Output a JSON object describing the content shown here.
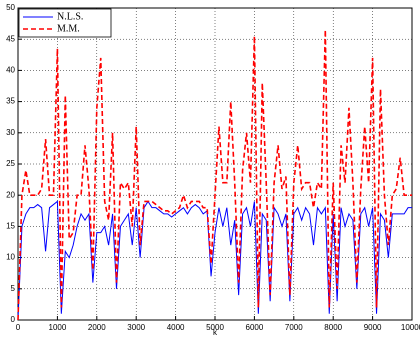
{
  "chart_data": {
    "type": "line",
    "xlabel": "k",
    "x": [
      0,
      100,
      200,
      300,
      400,
      500,
      600,
      700,
      800,
      900,
      1000,
      1100,
      1200,
      1300,
      1400,
      1500,
      1600,
      1700,
      1800,
      1900,
      2000,
      2100,
      2200,
      2300,
      2400,
      2500,
      2600,
      2700,
      2800,
      2900,
      3000,
      3100,
      3200,
      3300,
      3400,
      3500,
      3600,
      3700,
      3800,
      3900,
      4000,
      4100,
      4200,
      4300,
      4400,
      4500,
      4600,
      4700,
      4800,
      4900,
      5000,
      5100,
      5200,
      5300,
      5400,
      5500,
      5600,
      5700,
      5800,
      5900,
      6000,
      6100,
      6200,
      6300,
      6400,
      6500,
      6600,
      6700,
      6800,
      6900,
      7000,
      7100,
      7200,
      7300,
      7400,
      7500,
      7600,
      7700,
      7800,
      7900,
      8000,
      8100,
      8200,
      8300,
      8400,
      8500,
      8600,
      8700,
      8800,
      8900,
      9000,
      9100,
      9200,
      9300,
      9400,
      9500,
      9600,
      9700,
      9800,
      9900,
      10000
    ],
    "series": [
      {
        "name": "N.L.S.",
        "color": "#0000ff",
        "dashed": false,
        "values": [
          0,
          15,
          17,
          18,
          18,
          18.5,
          18,
          11,
          18,
          18.5,
          19,
          1,
          11,
          10,
          12,
          15,
          17,
          16,
          17,
          6,
          14,
          14,
          15,
          12,
          17,
          5,
          15,
          16,
          17,
          12,
          18,
          10,
          18,
          19,
          18,
          18,
          17.5,
          17,
          17,
          16.5,
          17,
          17.5,
          18,
          17,
          18,
          18.5,
          18,
          17,
          17.5,
          7,
          14,
          18,
          15,
          18,
          12,
          16,
          4,
          17,
          18,
          15,
          19,
          1,
          17,
          16,
          3,
          18,
          17,
          15,
          17,
          3,
          17,
          18,
          16,
          18,
          17,
          12,
          18,
          17,
          18,
          1,
          17,
          3,
          18,
          15,
          17,
          16,
          5,
          17,
          18,
          15,
          18,
          1,
          17,
          16,
          10,
          17,
          17,
          17,
          17,
          18,
          18
        ]
      },
      {
        "name": "M.M.",
        "color": "#ff0000",
        "dashed": true,
        "values": [
          0,
          20,
          24,
          20,
          20,
          20,
          21,
          29,
          20,
          20,
          43.5,
          2,
          36,
          13,
          14,
          20,
          20,
          28,
          21,
          8,
          34,
          42,
          19,
          16,
          30,
          6,
          22,
          21,
          22,
          15,
          31,
          12,
          19,
          19,
          19,
          18.5,
          18,
          17.5,
          17.5,
          17,
          17.5,
          18,
          20,
          18,
          19,
          19,
          19,
          18,
          18,
          9,
          20,
          31,
          22,
          22,
          35,
          22,
          6,
          24,
          30,
          22,
          45.5,
          2,
          38,
          22,
          4,
          22,
          28,
          21,
          23,
          4,
          22,
          28,
          21,
          22,
          22,
          18,
          22,
          21,
          46.5,
          2,
          22,
          5,
          28,
          22,
          34,
          22,
          6,
          21,
          31,
          22,
          42,
          2,
          37,
          20,
          12,
          20,
          21,
          26,
          20,
          20,
          20
        ]
      }
    ],
    "xlim": [
      0,
      10000
    ],
    "xticks": [
      0,
      1000,
      2000,
      3000,
      4000,
      5000,
      6000,
      7000,
      8000,
      9000,
      10000
    ],
    "ylim": [
      0,
      50
    ],
    "yticks": [
      0,
      5,
      10,
      15,
      20,
      25,
      30,
      35,
      40,
      45,
      50
    ],
    "grid": true,
    "legend": "upper left"
  }
}
